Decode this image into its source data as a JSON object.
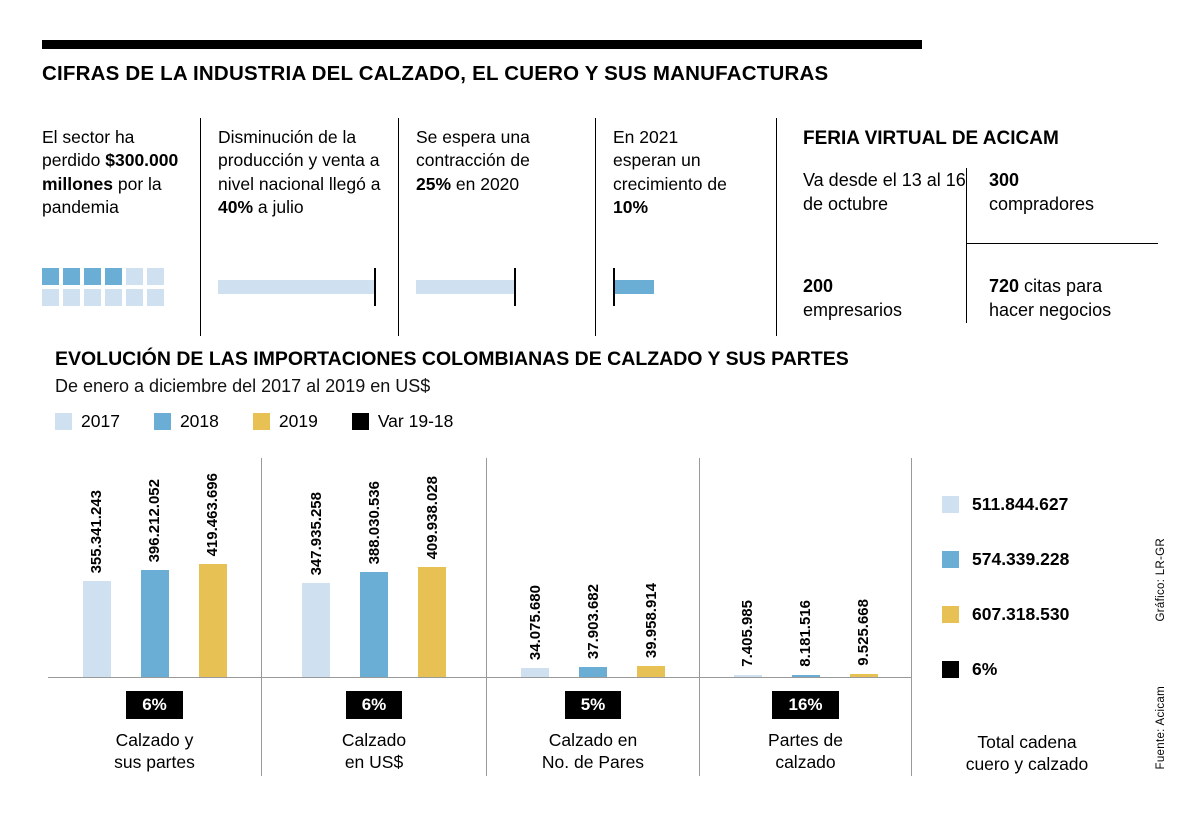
{
  "header": {
    "title": "CIFRAS DE LA INDUSTRIA DEL CALZADO, EL CUERO Y SUS MANUFACTURAS"
  },
  "facts": [
    {
      "pre": "El sector ha perdido ",
      "bold": "$300.000 millones",
      "post": " por la pandemia",
      "mini": {
        "type": "squares",
        "total": 12,
        "filled": 4,
        "filled_color": "#6aaed6",
        "empty_color": "#cfe0f1"
      }
    },
    {
      "pre": "Disminución de la producción y venta a nivel nacional llegó a ",
      "bold": "40%",
      "post": " a julio",
      "mini": {
        "type": "bar",
        "percent": 40,
        "color": "#cfe0f1",
        "tick": "end"
      }
    },
    {
      "pre": "Se espera una contracción de ",
      "bold": "25%",
      "post": " en 2020",
      "mini": {
        "type": "bar",
        "percent": 25,
        "color": "#cfe0f1",
        "tick": "end"
      }
    },
    {
      "pre": "En 2021 esperan un crecimiento de ",
      "bold": "10%",
      "post": "",
      "mini": {
        "type": "bar",
        "percent": 10,
        "color": "#6aaed6",
        "tick": "start"
      }
    }
  ],
  "feria": {
    "title": "FERIA VIRTUAL DE ACICAM",
    "cells": [
      {
        "bold": "",
        "bold_block": false,
        "text": "Va desde el 13 al 16 de octubre"
      },
      {
        "bold": "300",
        "bold_block": true,
        "text": "compradores"
      },
      {
        "bold": "200",
        "bold_block": true,
        "text": "empresarios"
      },
      {
        "bold": "720",
        "bold_block": false,
        "text": "citas para hacer negocios"
      }
    ]
  },
  "chart_data": {
    "type": "bar",
    "title": "EVOLUCIÓN DE LAS IMPORTACIONES COLOMBIANAS DE CALZADO Y SUS PARTES",
    "subtitle": "De enero a diciembre del 2017 al 2019 en US$",
    "legend": [
      {
        "label": "2017",
        "color": "#cfe0f1"
      },
      {
        "label": "2018",
        "color": "#6aaed6"
      },
      {
        "label": "2019",
        "color": "#e7c154"
      },
      {
        "label": "Var 19-18",
        "color": "#000000"
      }
    ],
    "categories": [
      "Calzado y\nsus partes",
      "Calzado\nen US$",
      "Calzado en\nNo. de Pares",
      "Partes de\ncalzado"
    ],
    "series": [
      {
        "name": "2017",
        "color": "#cfe0f1",
        "values": [
          355341243,
          347935258,
          34075680,
          7405985
        ],
        "labels": [
          "355.341.243",
          "347.935.258",
          "34.075.680",
          "7.405.985"
        ]
      },
      {
        "name": "2018",
        "color": "#6aaed6",
        "values": [
          396212052,
          388030536,
          37903682,
          8181516
        ],
        "labels": [
          "396.212.052",
          "388.030.536",
          "37.903.682",
          "8.181.516"
        ]
      },
      {
        "name": "2019",
        "color": "#e7c154",
        "values": [
          419463696,
          409938028,
          39958914,
          9525668
        ],
        "labels": [
          "419.463.696",
          "409.938.028",
          "39.958.914",
          "9.525.668"
        ]
      }
    ],
    "variation": [
      "6%",
      "6%",
      "5%",
      "16%"
    ],
    "ylim": [
      0,
      419463696
    ],
    "grid": false,
    "legend_position": "top-left"
  },
  "totals": {
    "label": "Total cadena\ncuero y calzado",
    "items": [
      {
        "value": "511.844.627",
        "color": "#cfe0f1"
      },
      {
        "value": "574.339.228",
        "color": "#6aaed6"
      },
      {
        "value": "607.318.530",
        "color": "#e7c154"
      },
      {
        "value": "6%",
        "color": "#000000"
      }
    ]
  },
  "credits": {
    "graphic": "Gráfico: LR-GR",
    "source": "Fuente: Acicam"
  },
  "colors": {
    "y2017": "#cfe0f1",
    "y2018": "#6aaed6",
    "y2019": "#e7c154",
    "var": "#000000"
  }
}
